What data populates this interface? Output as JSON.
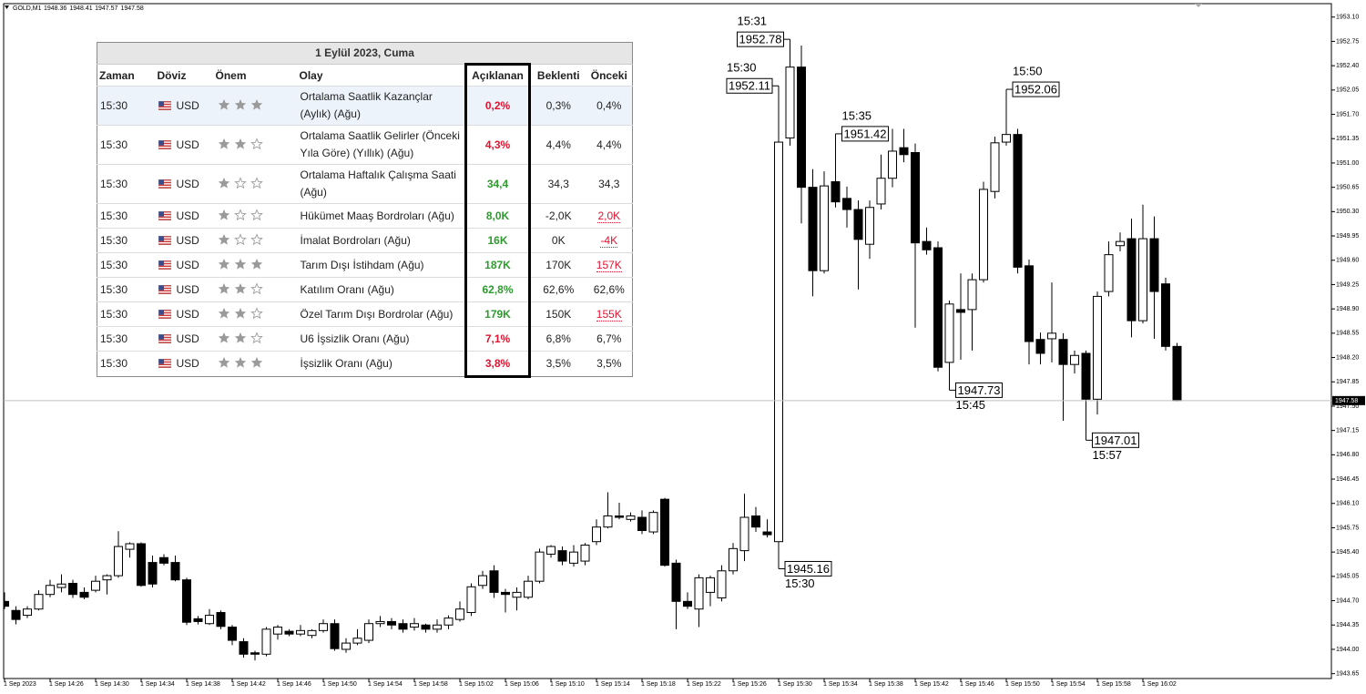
{
  "chart_data": {
    "type": "candlestick",
    "symbol": "GOLD,M1",
    "categories": [
      "1 Sep 2023",
      null,
      null,
      null,
      "1 Sep 14:26",
      null,
      null,
      null,
      "1 Sep 14:30",
      null,
      null,
      null,
      "1 Sep 14:34",
      null,
      null,
      null,
      "1 Sep 14:38",
      null,
      null,
      null,
      "1 Sep 14:42",
      null,
      null,
      null,
      "1 Sep 14:46",
      null,
      null,
      null,
      "1 Sep 14:50",
      null,
      null,
      null,
      "1 Sep 14:54",
      null,
      null,
      null,
      "1 Sep 14:58",
      null,
      null,
      null,
      "1 Sep 15:02",
      null,
      null,
      null,
      "1 Sep 15:06",
      null,
      null,
      null,
      "1 Sep 15:10",
      null,
      null,
      null,
      "1 Sep 15:14",
      null,
      null,
      null,
      "1 Sep 15:18",
      null,
      null,
      null,
      "1 Sep 15:22",
      null,
      null,
      null,
      "1 Sep 15:26",
      null,
      null,
      null,
      "1 Sep 15:30",
      null,
      null,
      null,
      "1 Sep 15:34",
      null,
      null,
      null,
      "1 Sep 15:38",
      null,
      null,
      null,
      "1 Sep 15:42",
      null,
      null,
      null,
      "1 Sep 15:46",
      null,
      null,
      null,
      "1 Sep 15:50",
      null,
      null,
      null,
      "1 Sep 15:54",
      null,
      null,
      null,
      "1 Sep 15:58",
      null,
      null,
      null,
      "1 Sep 16:02",
      null,
      null,
      null
    ],
    "open": [
      1944.69,
      1944.56,
      1944.49,
      1944.58,
      1944.79,
      1944.89,
      1944.95,
      1944.82,
      1944.85,
      1945.0,
      1945.06,
      1945.44,
      1945.52,
      1945.25,
      1945.32,
      1945.25,
      1945.0,
      1944.44,
      1944.37,
      1944.53,
      1944.32,
      1944.11,
      1943.95,
      1943.93,
      1944.22,
      1944.26,
      1944.22,
      1944.2,
      1944.27,
      1944.37,
      1944.0,
      1944.09,
      1944.13,
      1944.37,
      1944.4,
      1944.37,
      1944.32,
      1944.35,
      1944.29,
      1944.35,
      1944.43,
      1944.53,
      1944.92,
      1945.13,
      1944.82,
      1944.75,
      1944.75,
      1944.98,
      1945.37,
      1945.42,
      1945.24,
      1945.27,
      1945.55,
      1945.76,
      1945.92,
      1945.87,
      1945.9,
      1945.69,
      1946.16,
      1945.24,
      1944.69,
      1944.58,
      1944.82,
      1944.74,
      1945.13,
      1945.42,
      1945.92,
      1945.69,
      1945.55,
      1951.36,
      1952.38,
      1950.65,
      1949.45,
      1950.73,
      1950.49,
      1950.33,
      1949.83,
      1950.41,
      1950.78,
      1951.22,
      1951.15,
      1949.87,
      1949.78,
      1948.13,
      1948.89,
      1948.89,
      1949.32,
      1950.59,
      1951.3,
      1951.41,
      1949.52,
      1948.46,
      1948.47,
      1948.46,
      1948.1,
      1948.26,
      1947.6,
      1949.15,
      1949.81,
      1949.91,
      1948.73,
      1949.91,
      1949.26,
      1948.36
    ],
    "high": [
      1944.82,
      1944.62,
      1944.62,
      1944.85,
      1945.0,
      1945.08,
      1945.0,
      1944.89,
      1945.06,
      1945.08,
      1945.7,
      1945.54,
      1945.54,
      1945.35,
      1945.37,
      1945.35,
      1945.03,
      1944.48,
      1944.58,
      1944.56,
      1944.35,
      1944.16,
      1943.98,
      1944.32,
      1944.35,
      1944.29,
      1944.35,
      1944.29,
      1944.43,
      1944.43,
      1944.16,
      1944.29,
      1944.43,
      1944.48,
      1944.45,
      1944.43,
      1944.45,
      1944.37,
      1944.43,
      1944.49,
      1944.69,
      1944.95,
      1945.13,
      1945.21,
      1944.87,
      1944.89,
      1945.06,
      1945.45,
      1945.5,
      1945.48,
      1945.5,
      1945.53,
      1945.87,
      1946.26,
      1946.11,
      1945.97,
      1946.0,
      1946.0,
      1946.18,
      1945.29,
      1944.82,
      1945.08,
      1945.06,
      1945.21,
      1945.53,
      1946.24,
      1946.05,
      1945.87,
      1952.11,
      1952.78,
      1952.69,
      1950.91,
      1950.88,
      1951.42,
      1950.66,
      1950.46,
      1950.46,
      1951.12,
      1951.49,
      1951.49,
      1951.28,
      1950.07,
      1949.87,
      1949.02,
      1949.41,
      1949.41,
      1950.73,
      1951.38,
      1952.06,
      1951.49,
      1949.61,
      1948.56,
      1949.28,
      1948.55,
      1948.3,
      1948.3,
      1949.15,
      1949.87,
      1950.0,
      1950.2,
      1950.4,
      1950.23,
      1949.35,
      1948.41
    ],
    "low": [
      1944.58,
      1944.36,
      1944.45,
      1944.56,
      1944.75,
      1944.82,
      1944.74,
      1944.72,
      1944.82,
      1944.79,
      1945.03,
      1945.32,
      1944.9,
      1944.89,
      1945.21,
      1944.98,
      1944.35,
      1944.36,
      1944.35,
      1944.29,
      1944.06,
      1943.88,
      1943.84,
      1943.9,
      1944.14,
      1944.19,
      1944.19,
      1944.16,
      1944.24,
      1943.98,
      1943.95,
      1944.06,
      1944.09,
      1944.32,
      1944.29,
      1944.24,
      1944.27,
      1944.24,
      1944.24,
      1944.29,
      1944.4,
      1944.48,
      1944.87,
      1944.74,
      1944.53,
      1944.56,
      1944.72,
      1944.95,
      1945.32,
      1945.21,
      1945.19,
      1945.21,
      1945.5,
      1945.74,
      1945.87,
      1945.84,
      1945.66,
      1945.66,
      1945.19,
      1944.29,
      1944.58,
      1944.32,
      1944.62,
      1944.69,
      1945.08,
      1945.27,
      1945.69,
      1945.61,
      1945.16,
      1951.25,
      1950.13,
      1949.08,
      1949.41,
      1950.36,
      1950.07,
      1949.18,
      1949.62,
      1950.33,
      1950.65,
      1951.01,
      1948.63,
      1949.68,
      1948.0,
      1947.73,
      1948.17,
      1948.3,
      1949.28,
      1950.49,
      1951.25,
      1949.41,
      1948.1,
      1948.1,
      1948.13,
      1947.29,
      1947.97,
      1947.01,
      1947.38,
      1949.08,
      1949.73,
      1948.49,
      1948.69,
      1948.47,
      1948.3,
      1947.57
    ],
    "close": [
      1944.62,
      1944.43,
      1944.58,
      1944.79,
      1944.92,
      1944.94,
      1944.79,
      1944.75,
      1944.98,
      1945.06,
      1945.48,
      1945.52,
      1944.92,
      1944.94,
      1945.24,
      1945.0,
      1944.39,
      1944.4,
      1944.49,
      1944.33,
      1944.13,
      1943.93,
      1943.93,
      1944.29,
      1944.32,
      1944.22,
      1944.27,
      1944.27,
      1944.37,
      1944.01,
      1944.09,
      1944.16,
      1944.37,
      1944.4,
      1944.35,
      1944.29,
      1944.37,
      1944.29,
      1944.35,
      1944.45,
      1944.58,
      1944.9,
      1945.06,
      1944.82,
      1944.79,
      1944.82,
      1944.98,
      1945.4,
      1945.48,
      1945.27,
      1945.4,
      1945.5,
      1945.76,
      1945.92,
      1945.9,
      1945.92,
      1945.71,
      1945.97,
      1945.21,
      1944.69,
      1944.62,
      1945.03,
      1945.03,
      1945.13,
      1945.45,
      1945.9,
      1945.76,
      1945.65,
      1951.3,
      1952.38,
      1950.65,
      1949.45,
      1950.67,
      1950.44,
      1950.33,
      1949.9,
      1950.36,
      1950.78,
      1951.17,
      1951.12,
      1949.85,
      1949.75,
      1948.06,
      1948.97,
      1948.85,
      1949.32,
      1950.62,
      1951.29,
      1951.41,
      1949.5,
      1948.43,
      1948.26,
      1948.55,
      1948.1,
      1948.23,
      1947.6,
      1949.08,
      1949.68,
      1949.87,
      1948.73,
      1949.91,
      1949.15,
      1948.36,
      1947.58
    ],
    "ylim": [
      1943.58,
      1953.28
    ],
    "yticks": [
      1943.65,
      {
        "value": 1944.0,
        "label": "1944.00"
      },
      1944.35,
      {
        "value": 1944.7,
        "label": "1944.70"
      },
      1945.05,
      {
        "value": 1945.4,
        "label": "1945.40"
      },
      1945.75,
      {
        "value": 1946.1,
        "label": "1946.10"
      },
      1946.45,
      {
        "value": 1946.8,
        "label": "1946.80"
      },
      1947.15,
      {
        "value": 1947.5,
        "label": "1947.50"
      },
      1947.85,
      {
        "value": 1948.2,
        "label": "1948.20"
      },
      1948.55,
      {
        "value": 1948.9,
        "label": "1948.90"
      },
      1949.25,
      {
        "value": 1949.6,
        "label": "1949.60"
      },
      1949.95,
      {
        "value": 1950.3,
        "label": "1950.30"
      },
      1950.65,
      {
        "value": 1951.0,
        "label": "1951.00"
      },
      1951.35,
      {
        "value": 1951.7,
        "label": "1951.70"
      },
      1952.05,
      {
        "value": 1952.4,
        "label": "1952.40"
      },
      1952.75,
      {
        "value": 1953.1,
        "label": "1953.10"
      }
    ],
    "bull_color": "#ffffff",
    "bear_color": "#000000",
    "annotations": [
      {
        "time": "15:30",
        "price": 1952.11
      },
      {
        "time": "15:31",
        "price": 1952.78
      },
      {
        "time": "15:35",
        "price": 1951.42
      },
      {
        "time": "15:50",
        "price": 1952.06
      },
      {
        "time": "15:30",
        "price": 1945.16
      },
      {
        "time": "15:45",
        "price": 1947.73
      },
      {
        "time": "15:57",
        "price": 1947.01
      }
    ]
  },
  "table": {
    "title": "1 Eylül 2023, Cuma",
    "columns": [
      "Zaman",
      "Döviz",
      "Önem",
      "Olay",
      "Açıklanan",
      "Beklenti",
      "Önceki"
    ],
    "rows": [
      {
        "time": "15:30",
        "currency": "USD",
        "importance": 3,
        "event": "Ortalama Saatlik Kazançlar (Aylık) (Ağu)",
        "actual": "0,2%",
        "actual_color": "#e3132f",
        "forecast": "0,3%",
        "previous": "0,4%"
      },
      {
        "time": "15:30",
        "currency": "USD",
        "importance": 2,
        "event": "Ortalama Saatlik Gelirler (Önceki Yıla Göre) (Yıllık) (Ağu)",
        "actual": "4,3%",
        "actual_color": "#e3132f",
        "forecast": "4,4%",
        "previous": "4,4%"
      },
      {
        "time": "15:30",
        "currency": "USD",
        "importance": 1,
        "event": "Ortalama Haftalık Çalışma Saati (Ağu)",
        "actual": "34,4",
        "actual_color": "#2e9b2e",
        "forecast": "34,3",
        "previous": "34,3"
      },
      {
        "time": "15:30",
        "currency": "USD",
        "importance": 1,
        "event": "Hükümet Maaş Bordroları (Ağu)",
        "actual": "8,0K",
        "actual_color": "#2e9b2e",
        "forecast": "-2,0K",
        "previous": "2,0K",
        "previous_color": "#e3132f"
      },
      {
        "time": "15:30",
        "currency": "USD",
        "importance": 1,
        "event": "İmalat Bordroları (Ağu)",
        "actual": "16K",
        "actual_color": "#2e9b2e",
        "forecast": "0K",
        "previous": "-4K",
        "previous_color": "#e3132f"
      },
      {
        "time": "15:30",
        "currency": "USD",
        "importance": 3,
        "event": "Tarım Dışı İstihdam (Ağu)",
        "actual": "187K",
        "actual_color": "#2e9b2e",
        "forecast": "170K",
        "previous": "157K",
        "previous_color": "#e3132f"
      },
      {
        "time": "15:30",
        "currency": "USD",
        "importance": 2,
        "event": "Katılım Oranı (Ağu)",
        "actual": "62,8%",
        "actual_color": "#2e9b2e",
        "forecast": "62,6%",
        "previous": "62,6%"
      },
      {
        "time": "15:30",
        "currency": "USD",
        "importance": 2,
        "event": "Özel Tarım Dışı Bordrolar (Ağu)",
        "actual": "179K",
        "actual_color": "#2e9b2e",
        "forecast": "150K",
        "previous": "155K",
        "previous_color": "#e3132f"
      },
      {
        "time": "15:30",
        "currency": "USD",
        "importance": 2,
        "event": "U6 İşsizlik Oranı (Ağu)",
        "actual": "7,1%",
        "actual_color": "#e3132f",
        "forecast": "6,8%",
        "previous": "6,7%"
      },
      {
        "time": "15:30",
        "currency": "USD",
        "importance": 3,
        "event": "İşsizlik Oranı (Ağu)",
        "actual": "3,8%",
        "actual_color": "#e3132f",
        "forecast": "3,5%",
        "previous": "3,5%"
      }
    ]
  }
}
